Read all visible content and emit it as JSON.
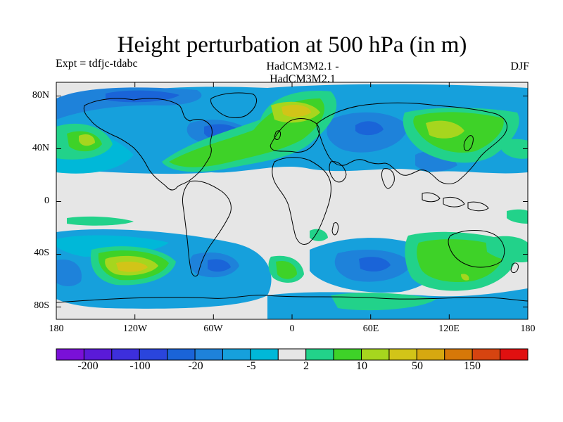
{
  "title": "Height perturbation at 500 hPa (in m)",
  "subtitle_left": "Expt = tdfjc-tdabc",
  "subtitle_center": "HadCM3M2.1 - HadCM3M2.1",
  "subtitle_right": "DJF",
  "lat_labels": [
    "80N",
    "40N",
    "0",
    "40S",
    "80S"
  ],
  "lon_labels": [
    "180",
    "120W",
    "60W",
    "0",
    "60E",
    "120E",
    "180"
  ],
  "colorbar": {
    "tick_labels": [
      "-200",
      "-100",
      "-20",
      "-5",
      "2",
      "10",
      "50",
      "150"
    ],
    "colors": [
      "#7a10d8",
      "#5a1ad8",
      "#3d2fdc",
      "#2a45dc",
      "#1a64d8",
      "#1e82da",
      "#16a0dc",
      "#00b8d8",
      "#e6e6e6",
      "#22d28a",
      "#3ed228",
      "#a6d61e",
      "#d2c418",
      "#d6a810",
      "#d67808",
      "#d64410",
      "#e01010"
    ]
  },
  "map_colors": {
    "neutral": "#e6e6e6",
    "cyan": "#00b8d8",
    "light_blue": "#16a0dc",
    "blue": "#1e82da",
    "deep_blue": "#1a64d8",
    "green_cyan": "#22d28a",
    "green": "#3ed228",
    "yellow_green": "#a6d61e",
    "yellow": "#d2c418",
    "coast": "#000000"
  }
}
